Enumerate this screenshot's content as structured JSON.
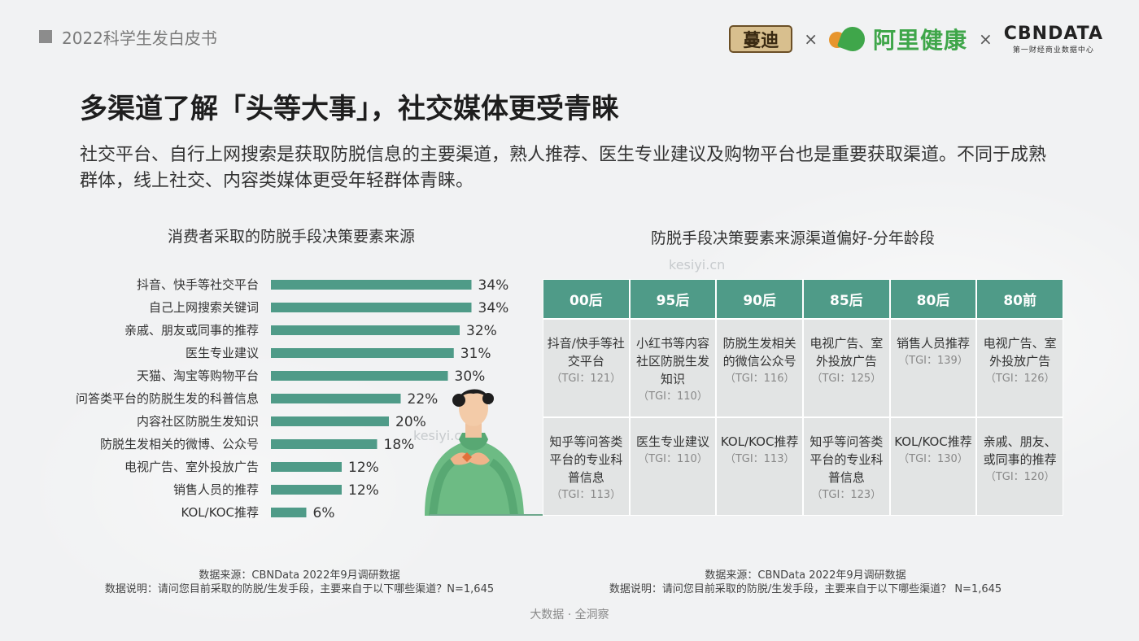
{
  "header": {
    "report_title": "2022科学生发白皮书",
    "logo_mandi": "蔓迪",
    "separator": "×",
    "logo_ali": "阿里健康",
    "logo_cbn_main": "CBNDATA",
    "logo_cbn_sub": "第一财经商业数据中心"
  },
  "main_title": "多渠道了解「头等大事」，社交媒体更受青睐",
  "subtitle": "社交平台、自行上网搜索是获取防脱信息的主要渠道，熟人推荐、医生专业建议及购物平台也是重要获取渠道。不同于成熟群体，线上社交、内容类媒体更受年轻群体青睐。",
  "left_chart": {
    "title": "消费者采取的防脱手段决策要素来源",
    "note_source": "数据来源：CBNData 2022年9月调研数据",
    "note_desc": "数据说明：请问您目前采取的防脱/生发手段，主要来自于以下哪些渠道？N=1,645"
  },
  "chart_data": {
    "type": "bar",
    "orientation": "horizontal",
    "categories": [
      "抖音、快手等社交平台",
      "自己上网搜索关键词",
      "亲戚、朋友或同事的推荐",
      "医生专业建议",
      "天猫、淘宝等购物平台",
      "问答类平台的防脱生发的科普信息",
      "内容社区防脱生发知识",
      "防脱生发相关的微博、公众号",
      "电视广告、室外投放广告",
      "销售人员的推荐",
      "KOL/KOC推荐"
    ],
    "values": [
      34,
      34,
      32,
      31,
      30,
      22,
      20,
      18,
      12,
      12,
      6
    ],
    "value_labels": [
      "34%",
      "34%",
      "32%",
      "31%",
      "30%",
      "22%",
      "20%",
      "18%",
      "12%",
      "12%",
      "6%"
    ],
    "unit": "%",
    "xlim": [
      0,
      40
    ],
    "bar_color": "#4f9b88"
  },
  "right_table": {
    "title": "防脱手段决策要素来源渠道偏好-分年龄段",
    "headers": [
      "00后",
      "95后",
      "90后",
      "85后",
      "80后",
      "80前"
    ],
    "row1": [
      {
        "text": "抖音/快手等社交平台",
        "tgi": "（TGI：121）"
      },
      {
        "text": "小红书等内容社区防脱生发知识",
        "tgi": "（TGI：110）"
      },
      {
        "text": "防脱生发相关的微信公众号",
        "tgi": "（TGI：116）"
      },
      {
        "text": "电视广告、室外投放广告",
        "tgi": "（TGI：125）"
      },
      {
        "text": "销售人员推荐",
        "tgi": "（TGI：139）"
      },
      {
        "text": "电视广告、室外投放广告",
        "tgi": "（TGI：126）"
      }
    ],
    "row2": [
      {
        "text": "知乎等问答类平台的专业科普信息",
        "tgi": "（TGI：113）"
      },
      {
        "text": "医生专业建议",
        "tgi": "（TGI：110）"
      },
      {
        "text": "KOL/KOC推荐",
        "tgi": "（TGI：113）"
      },
      {
        "text": "知乎等问答类平台的专业科普信息",
        "tgi": "（TGI：123）"
      },
      {
        "text": "KOL/KOC推荐",
        "tgi": "（TGI：130）"
      },
      {
        "text": "亲戚、朋友、或同事的推荐",
        "tgi": "（TGI：120）"
      }
    ],
    "note_source": "数据来源：CBNData 2022年9月调研数据",
    "note_desc": "数据说明：请问您目前采取的防脱/生发手段，主要来自于以下哪些渠道？ N=1,645"
  },
  "footer": "大数据 · 全洞察",
  "watermark": "kesiyi.cn",
  "colors": {
    "accent": "#4f9b88",
    "cell_bg": "#e2e4e4",
    "figure_green": "#6dbb84"
  }
}
